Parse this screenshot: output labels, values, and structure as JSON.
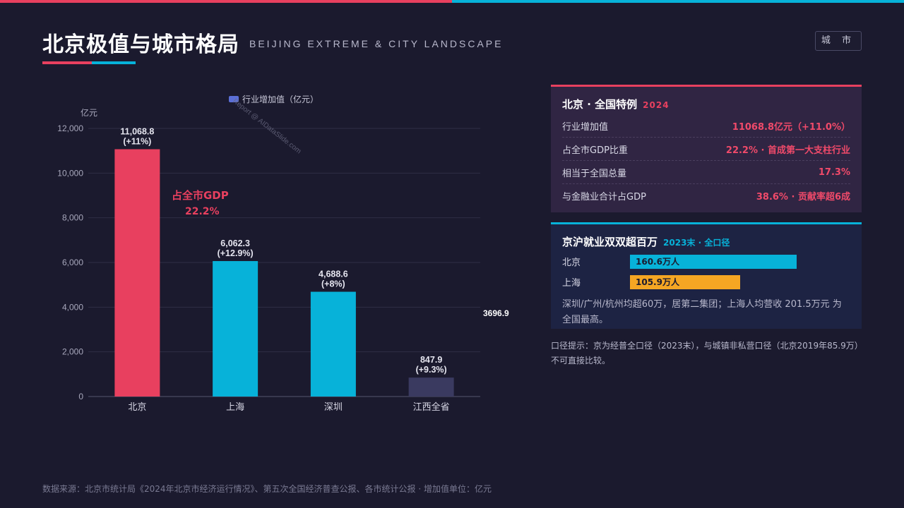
{
  "header": {
    "title": "北京极值与城市格局",
    "subtitle": "BEIJING EXTREME & CITY LANDSCAPE",
    "tag": "城 市"
  },
  "colors": {
    "red": "#e8405f",
    "blue": "#07b2d9",
    "navy": "#3a3a60",
    "orange": "#f5a623"
  },
  "chart_data": {
    "type": "bar",
    "legend": "行业增加值（亿元）",
    "legend_position": "top-center",
    "ylabel": "亿元",
    "ylim": [
      0,
      12000
    ],
    "yticks": [
      "0",
      "2,000",
      "4,000",
      "6,000",
      "8,000",
      "10,000",
      "12,000"
    ],
    "ytick_values": [
      0,
      2000,
      4000,
      6000,
      8000,
      10000,
      12000
    ],
    "categories": [
      "北京",
      "上海",
      "深圳",
      "江西全省"
    ],
    "values": [
      11068.8,
      6062.3,
      4688.6,
      847.9
    ],
    "value_labels": [
      "11,068.8",
      "6,062.3",
      "4,688.6",
      "847.9"
    ],
    "growth_labels": [
      "(+11%)",
      "(+12.9%)",
      "(+8%)",
      "(+9.3%)"
    ],
    "bar_colors": [
      "#e8405f",
      "#07b2d9",
      "#07b2d9",
      "#3a3a60"
    ],
    "annotation": {
      "line1": "占全市GDP",
      "line2": "22.2%"
    },
    "side_label": "3696.9",
    "watermark": "Report @ AIDataSlide.com",
    "grid": true
  },
  "card1": {
    "title": "北京 · 全国特例",
    "year": "2024",
    "rows": [
      {
        "label": "行业增加值",
        "value": "11068.8亿元（+11.0%）"
      },
      {
        "label": "占全市GDP比重",
        "value": "22.2% · 首成第一大支柱行业"
      },
      {
        "label": "相当于全国总量",
        "value": "17.3%"
      },
      {
        "label": "与金融业合计占GDP",
        "value": "38.6% · 贡献率超6成"
      }
    ]
  },
  "card2": {
    "title": "京沪就业双双超百万",
    "scope": "2023末 · 全口径",
    "bars": [
      {
        "city": "北京",
        "label": "160.6万人",
        "value": 160.6
      },
      {
        "city": "上海",
        "label": "105.9万人",
        "value": 105.9
      }
    ],
    "note": "深圳/广州/杭州均超60万，居第二集团；上海人均营收 201.5万元 为全国最高。"
  },
  "footnote": "口径提示：京为经普全口径（2023末），与城镇非私营口径（北京2019年85.9万）不可直接比较。",
  "source": "数据来源：北京市统计局《2024年北京市经济运行情况》、第五次全国经济普查公报、各市统计公报 · 增加值单位：亿元"
}
